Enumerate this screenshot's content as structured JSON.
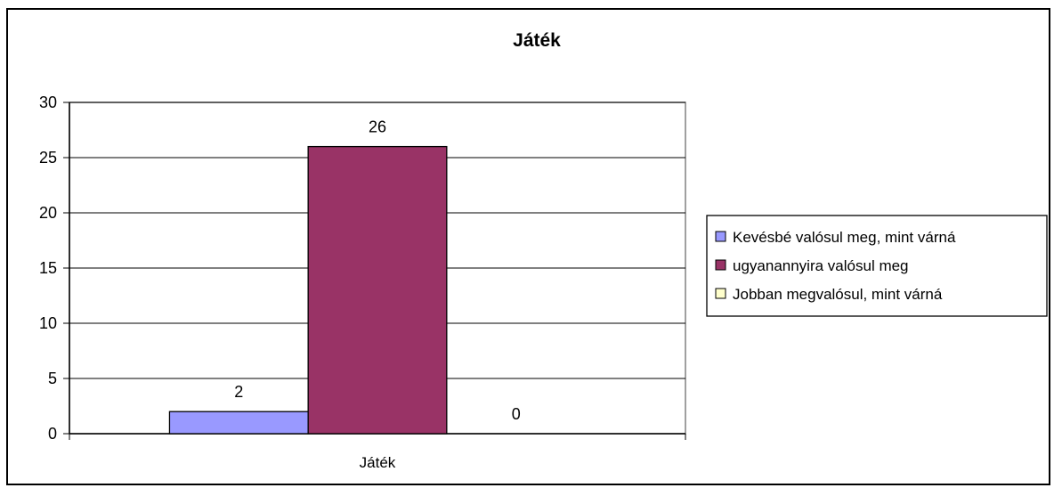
{
  "chart_data": {
    "type": "bar",
    "title": "Játék",
    "xlabel": "",
    "ylabel": "",
    "categories": [
      "Játék"
    ],
    "series": [
      {
        "name": "Kevésbé valósul meg, mint várná",
        "values": [
          2
        ],
        "color": "#9999FF"
      },
      {
        "name": "ugyanannyira valósul meg",
        "values": [
          26
        ],
        "color": "#993366"
      },
      {
        "name": "Jobban megvalósul, mint várná",
        "values": [
          0
        ],
        "color": "#FFFFCC"
      }
    ],
    "ylim": [
      0,
      30
    ],
    "yticks": [
      0,
      5,
      10,
      15,
      20,
      25,
      30
    ],
    "grid": true,
    "legend_position": "right",
    "data_labels": true
  }
}
